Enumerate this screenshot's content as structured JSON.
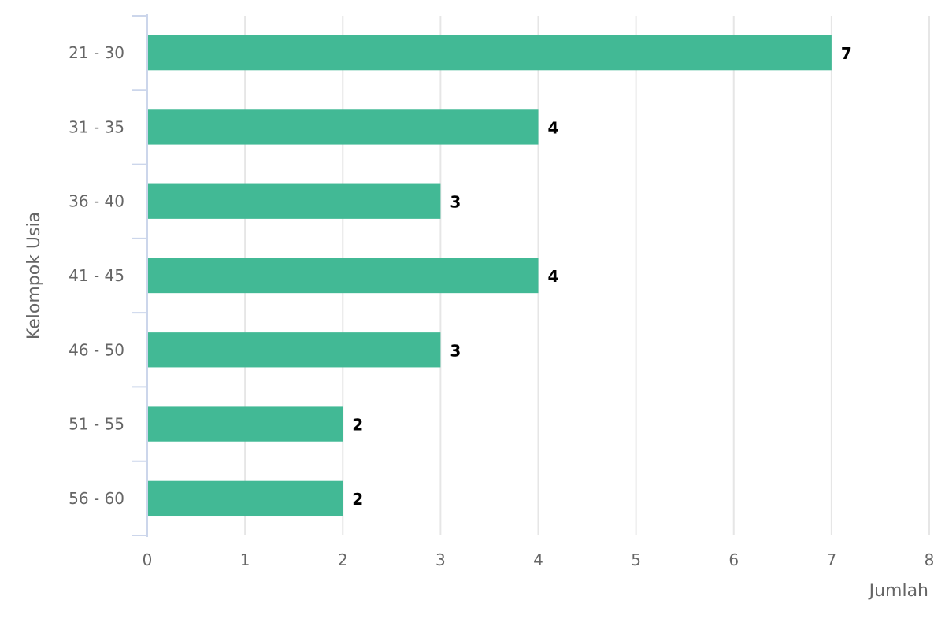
{
  "chart_data": {
    "type": "bar",
    "orientation": "horizontal",
    "categories": [
      "21 - 30",
      "31 - 35",
      "36 - 40",
      "41 - 45",
      "46 - 50",
      "51 - 55",
      "56 - 60"
    ],
    "values": [
      7,
      4,
      3,
      4,
      3,
      2,
      2
    ],
    "xlabel": "Jumlah",
    "ylabel": "Kelompok Usia",
    "xlim": [
      0,
      8
    ],
    "xticks": [
      0,
      1,
      2,
      3,
      4,
      5,
      6,
      7,
      8
    ],
    "grid": true,
    "legend": "none",
    "bar_color": "#42b995",
    "data_labels": true
  }
}
